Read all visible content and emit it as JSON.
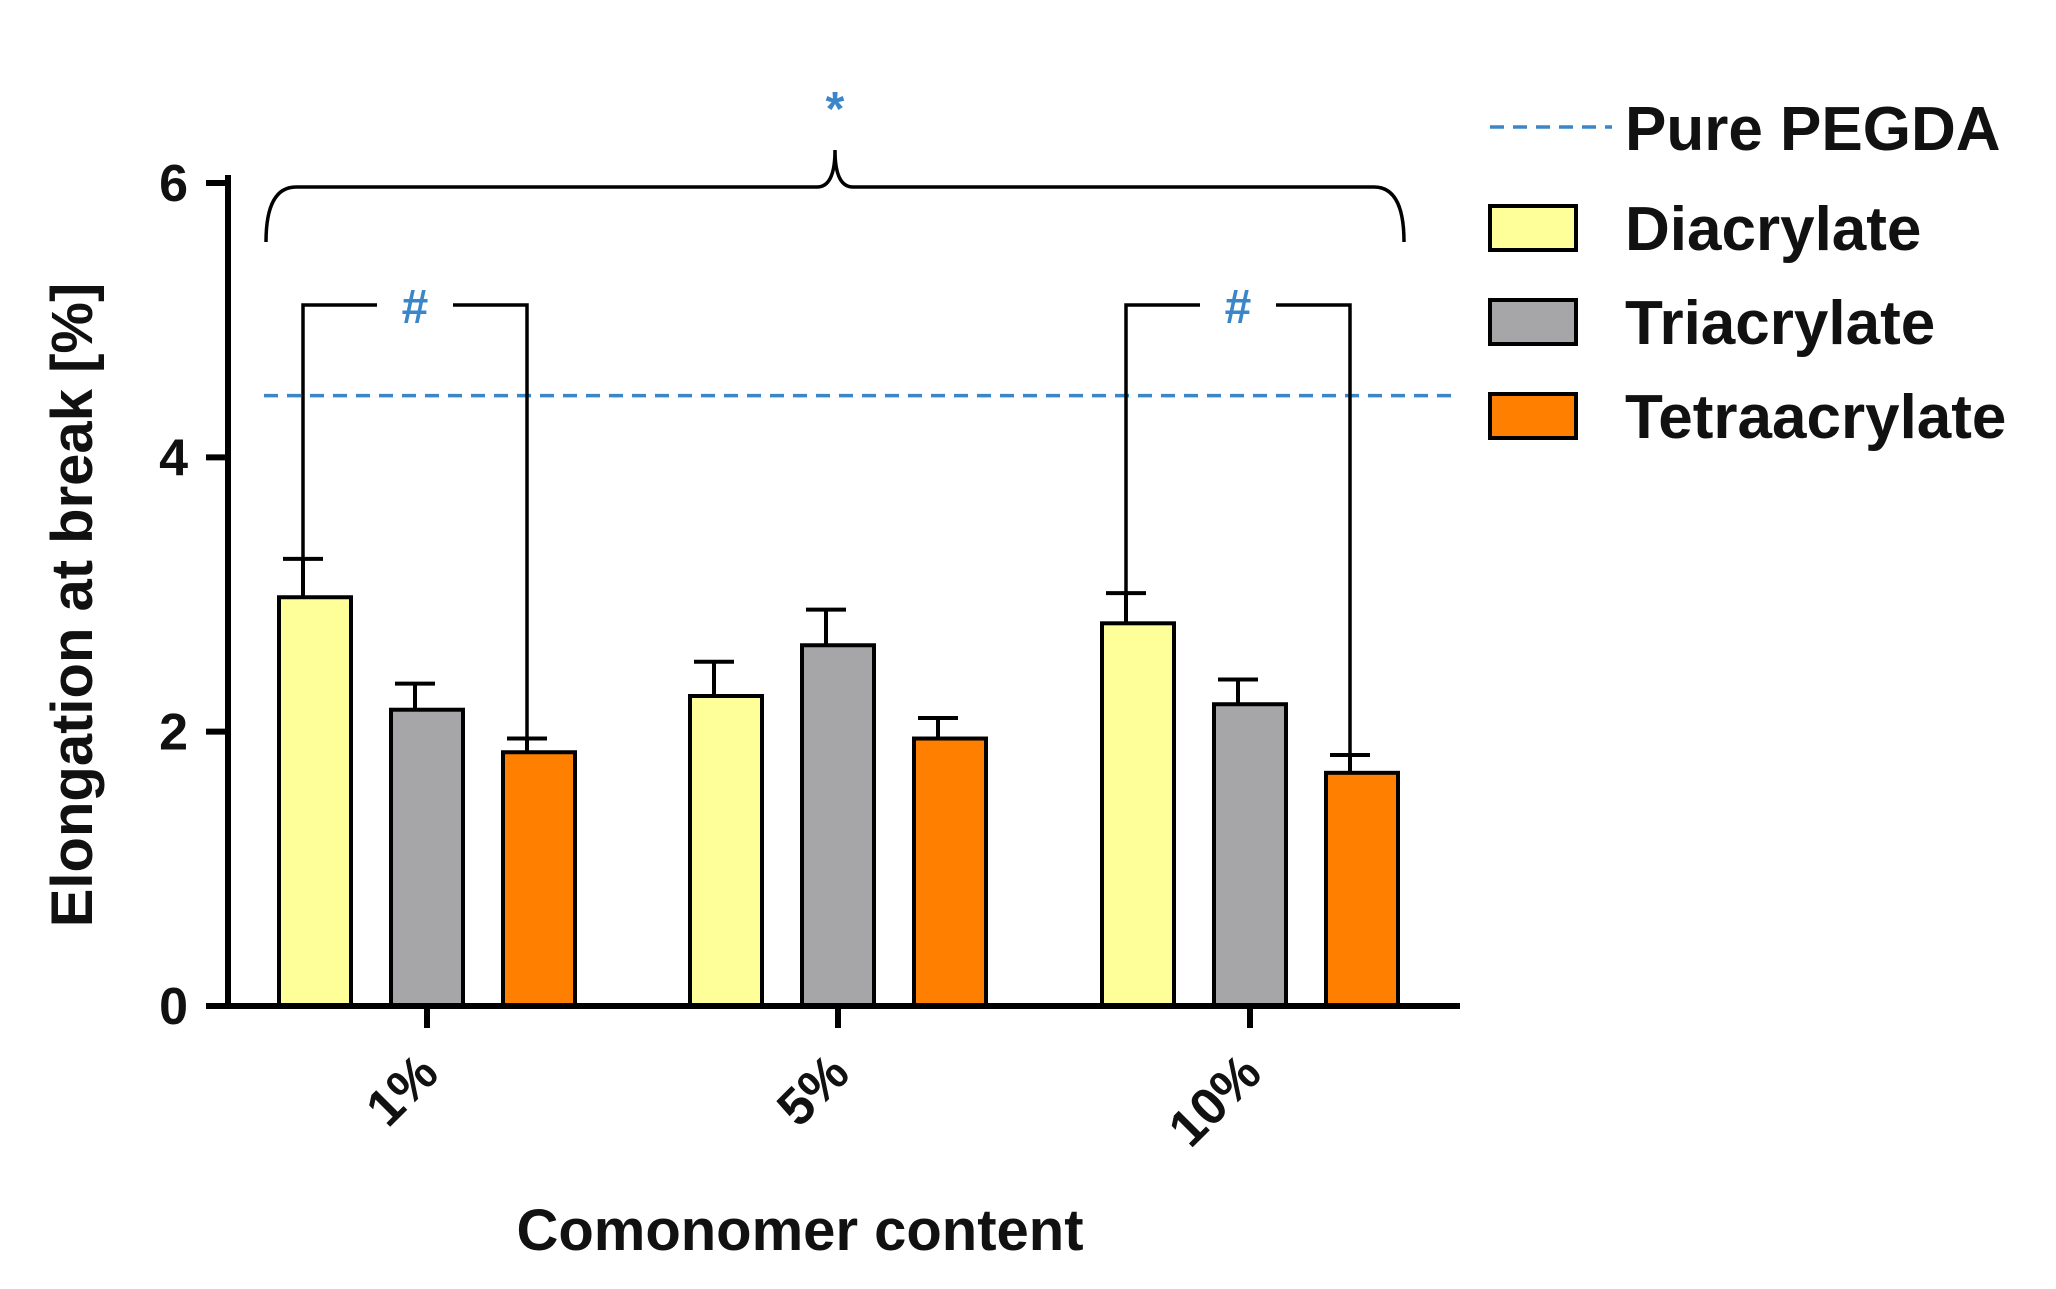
{
  "chart_data": {
    "type": "bar",
    "title": "",
    "xlabel": "Comonomer content",
    "ylabel": "Elongation at break [%]",
    "ylim": [
      0,
      6
    ],
    "yticks": [
      0,
      2,
      4,
      6
    ],
    "grid": false,
    "legend_position": "top-right",
    "categories": [
      "1%",
      "5%",
      "10%"
    ],
    "series": [
      {
        "name": "Diacrylate",
        "color": "#ffff99",
        "values": [
          2.98,
          2.26,
          2.79
        ],
        "errors": [
          0.28,
          0.25,
          0.22
        ]
      },
      {
        "name": "Triacrylate",
        "color": "#a6a6a8",
        "values": [
          2.16,
          2.63,
          2.2
        ],
        "errors": [
          0.19,
          0.26,
          0.18
        ]
      },
      {
        "name": "Tetraacrylate",
        "color": "#ff8000",
        "values": [
          1.85,
          1.95,
          1.7
        ],
        "errors": [
          0.1,
          0.15,
          0.13
        ]
      }
    ],
    "reference_line": {
      "name": "Pure PEGDA",
      "value": 4.45,
      "color": "#3a86c8",
      "style": "dashed"
    },
    "annotations": {
      "overall": {
        "symbol": "*",
        "color": "#3a86c8",
        "spans": "all groups"
      },
      "pairwise": [
        {
          "symbol": "#",
          "color": "#3a86c8",
          "category": "1%",
          "between": [
            "Diacrylate",
            "Tetraacrylate"
          ]
        },
        {
          "symbol": "#",
          "color": "#3a86c8",
          "category": "10%",
          "between": [
            "Diacrylate",
            "Tetraacrylate"
          ]
        }
      ]
    }
  }
}
